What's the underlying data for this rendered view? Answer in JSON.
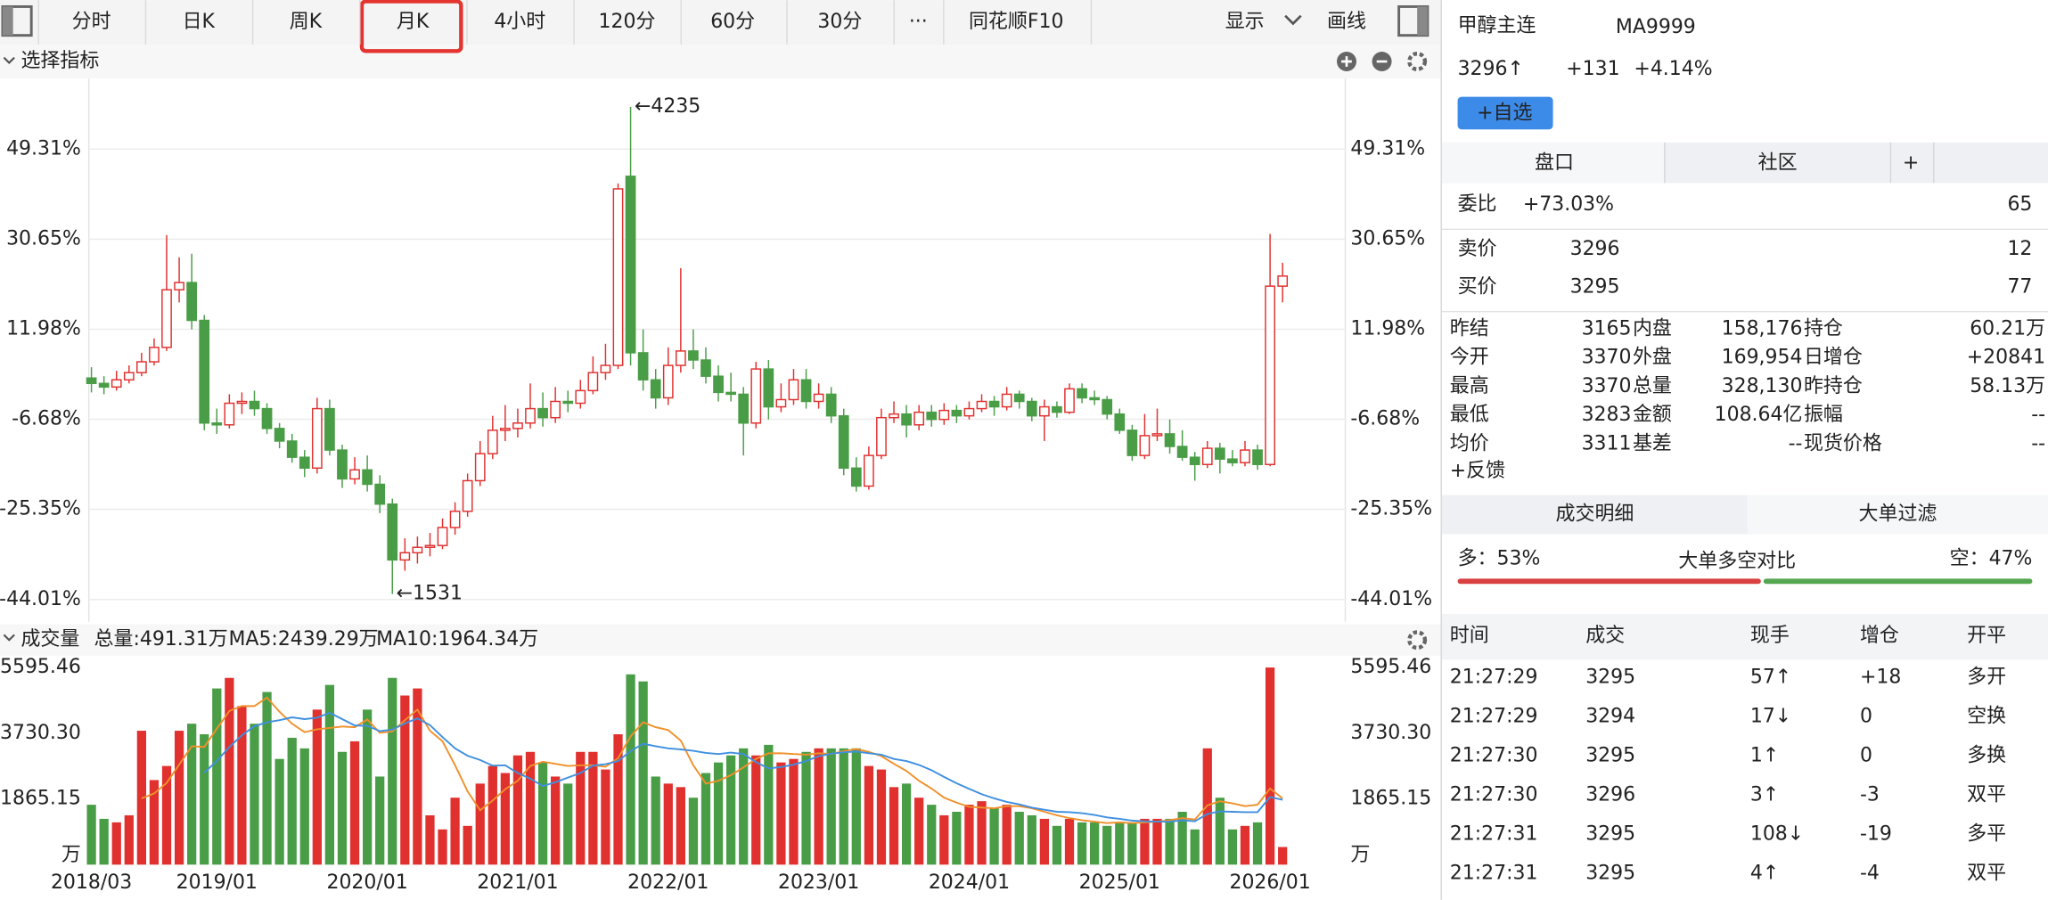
{
  "toolbar": {
    "tabs": [
      "分时",
      "日K",
      "周K",
      "月K",
      "4小时",
      "120分",
      "60分",
      "30分",
      "···",
      "同花顺F10"
    ],
    "active": 3,
    "display": "显示",
    "draw": "画线"
  },
  "indicator_bar": {
    "label": "选择指标"
  },
  "chart_data": [
    {
      "type": "candlestick",
      "grid": true,
      "up_color": "#e0312f",
      "down_color": "#4a9d47",
      "ylim": [
        1377,
        4393
      ],
      "yticks": [
        {
          "value": 4001,
          "label": "49.31%"
        },
        {
          "value": 3501,
          "label": "30.65%"
        },
        {
          "value": 3001,
          "label": "11.98%"
        },
        {
          "value": 2501,
          "label": "-6.68%"
        },
        {
          "value": 2001,
          "label": "-25.35%"
        },
        {
          "value": 1500,
          "label": "-44.01%"
        }
      ],
      "xticks": [
        {
          "value": 0,
          "label": "2018/03"
        },
        {
          "value": 10,
          "label": "2019/01"
        },
        {
          "value": 22,
          "label": "2020/01"
        },
        {
          "value": 34,
          "label": "2021/01"
        },
        {
          "value": 46,
          "label": "2022/01"
        },
        {
          "value": 58,
          "label": "2023/01"
        },
        {
          "value": 70,
          "label": "2024/01"
        },
        {
          "value": 82,
          "label": "2025/01"
        },
        {
          "value": 94,
          "label": "2026/01"
        }
      ],
      "annotations": [
        {
          "label": "←4235",
          "value": 4235
        },
        {
          "label": "←1531",
          "value": 1531
        }
      ],
      "candles": [
        [
          2730,
          2790,
          2650,
          2700
        ],
        [
          2700,
          2740,
          2640,
          2680
        ],
        [
          2680,
          2770,
          2660,
          2720
        ],
        [
          2720,
          2800,
          2700,
          2760
        ],
        [
          2760,
          2870,
          2740,
          2820
        ],
        [
          2820,
          2950,
          2800,
          2900
        ],
        [
          2900,
          3523,
          2880,
          3220
        ],
        [
          3220,
          3400,
          3150,
          3260
        ],
        [
          3260,
          3420,
          3000,
          3050
        ],
        [
          3050,
          3080,
          2440,
          2480
        ],
        [
          2480,
          2560,
          2420,
          2470
        ],
        [
          2470,
          2640,
          2450,
          2590
        ],
        [
          2590,
          2650,
          2530,
          2600
        ],
        [
          2600,
          2660,
          2520,
          2560
        ],
        [
          2560,
          2590,
          2420,
          2450
        ],
        [
          2450,
          2480,
          2340,
          2380
        ],
        [
          2380,
          2420,
          2260,
          2290
        ],
        [
          2290,
          2330,
          2180,
          2230
        ],
        [
          2230,
          2620,
          2200,
          2560
        ],
        [
          2560,
          2610,
          2300,
          2330
        ],
        [
          2330,
          2360,
          2120,
          2170
        ],
        [
          2170,
          2290,
          2140,
          2220
        ],
        [
          2220,
          2300,
          2100,
          2140
        ],
        [
          2140,
          2190,
          1980,
          2030
        ],
        [
          2030,
          2060,
          1531,
          1720
        ],
        [
          1720,
          1840,
          1660,
          1760
        ],
        [
          1760,
          1850,
          1700,
          1790
        ],
        [
          1790,
          1870,
          1740,
          1800
        ],
        [
          1800,
          1950,
          1780,
          1900
        ],
        [
          1900,
          2040,
          1860,
          1990
        ],
        [
          1990,
          2200,
          1960,
          2160
        ],
        [
          2160,
          2380,
          2130,
          2310
        ],
        [
          2310,
          2520,
          2280,
          2440
        ],
        [
          2440,
          2580,
          2380,
          2450
        ],
        [
          2450,
          2560,
          2400,
          2480
        ],
        [
          2480,
          2700,
          2450,
          2560
        ],
        [
          2560,
          2650,
          2460,
          2510
        ],
        [
          2510,
          2680,
          2480,
          2600
        ],
        [
          2600,
          2660,
          2540,
          2590
        ],
        [
          2590,
          2720,
          2560,
          2660
        ],
        [
          2660,
          2850,
          2640,
          2760
        ],
        [
          2760,
          2920,
          2720,
          2800
        ],
        [
          2800,
          3810,
          2780,
          3780
        ],
        [
          3850,
          4235,
          2800,
          2870
        ],
        [
          2870,
          3000,
          2660,
          2720
        ],
        [
          2720,
          2780,
          2560,
          2620
        ],
        [
          2620,
          2900,
          2580,
          2800
        ],
        [
          2800,
          3340,
          2760,
          2880
        ],
        [
          2880,
          3000,
          2780,
          2830
        ],
        [
          2830,
          2900,
          2700,
          2740
        ],
        [
          2740,
          2800,
          2600,
          2650
        ],
        [
          2650,
          2760,
          2600,
          2640
        ],
        [
          2640,
          2680,
          2300,
          2480
        ],
        [
          2480,
          2820,
          2450,
          2780
        ],
        [
          2780,
          2830,
          2500,
          2570
        ],
        [
          2570,
          2700,
          2540,
          2610
        ],
        [
          2610,
          2780,
          2580,
          2720
        ],
        [
          2720,
          2780,
          2560,
          2600
        ],
        [
          2600,
          2700,
          2560,
          2640
        ],
        [
          2640,
          2680,
          2480,
          2520
        ],
        [
          2520,
          2560,
          2190,
          2230
        ],
        [
          2230,
          2290,
          2100,
          2130
        ],
        [
          2130,
          2350,
          2110,
          2300
        ],
        [
          2300,
          2560,
          2280,
          2510
        ],
        [
          2510,
          2600,
          2480,
          2530
        ],
        [
          2530,
          2580,
          2400,
          2470
        ],
        [
          2470,
          2580,
          2440,
          2540
        ],
        [
          2540,
          2580,
          2460,
          2500
        ],
        [
          2500,
          2590,
          2470,
          2550
        ],
        [
          2550,
          2580,
          2480,
          2520
        ],
        [
          2520,
          2600,
          2500,
          2560
        ],
        [
          2560,
          2640,
          2540,
          2600
        ],
        [
          2600,
          2630,
          2520,
          2570
        ],
        [
          2570,
          2680,
          2550,
          2640
        ],
        [
          2640,
          2660,
          2560,
          2600
        ],
        [
          2600,
          2620,
          2490,
          2520
        ],
        [
          2520,
          2610,
          2380,
          2570
        ],
        [
          2570,
          2600,
          2510,
          2540
        ],
        [
          2540,
          2700,
          2530,
          2670
        ],
        [
          2670,
          2700,
          2590,
          2620
        ],
        [
          2620,
          2660,
          2580,
          2610
        ],
        [
          2610,
          2630,
          2500,
          2530
        ],
        [
          2530,
          2560,
          2420,
          2440
        ],
        [
          2440,
          2470,
          2270,
          2300
        ],
        [
          2300,
          2530,
          2280,
          2410
        ],
        [
          2410,
          2560,
          2380,
          2420
        ],
        [
          2420,
          2500,
          2310,
          2350
        ],
        [
          2350,
          2440,
          2270,
          2290
        ],
        [
          2290,
          2320,
          2160,
          2250
        ],
        [
          2250,
          2380,
          2230,
          2340
        ],
        [
          2340,
          2370,
          2200,
          2280
        ],
        [
          2280,
          2330,
          2240,
          2260
        ],
        [
          2260,
          2380,
          2240,
          2330
        ],
        [
          2330,
          2360,
          2220,
          2250
        ],
        [
          2250,
          3530,
          2240,
          3240
        ],
        [
          3240,
          3370,
          3150,
          3296
        ]
      ]
    },
    {
      "type": "bar",
      "title": "成交量",
      "legend": [
        "总量:491.31万",
        "MA5:2439.29万",
        "MA10:1964.34万"
      ],
      "legend_colors": [
        "#e0312f",
        "#f0902a",
        "#3f8fe0"
      ],
      "ylim": [
        0,
        5930
      ],
      "yticks": [
        5595.46,
        {
          "value": 3730.3,
          "label": "3730.30"
        },
        1865.15,
        {
          "value": 0,
          "label": "万"
        }
      ],
      "values": [
        1700,
        1300,
        1200,
        1400,
        3800,
        2400,
        2800,
        3800,
        4000,
        3700,
        5000,
        5300,
        4500,
        4000,
        4900,
        3000,
        3600,
        3300,
        4400,
        5100,
        3200,
        3500,
        4400,
        2500,
        5300,
        4800,
        5000,
        1400,
        1000,
        1900,
        1100,
        2300,
        2800,
        2600,
        3100,
        3200,
        2900,
        2500,
        2300,
        3200,
        3200,
        2700,
        3700,
        5400,
        5200,
        2500,
        2300,
        2200,
        1900,
        2600,
        2900,
        3100,
        3300,
        3100,
        3400,
        2900,
        3000,
        3200,
        3300,
        3300,
        3300,
        3300,
        2800,
        2700,
        2200,
        2300,
        1900,
        1700,
        1400,
        1500,
        1700,
        1800,
        1600,
        1700,
        1500,
        1400,
        1300,
        1100,
        1300,
        1200,
        1200,
        1100,
        1200,
        1200,
        1300,
        1300,
        1300,
        1500,
        1000,
        3300,
        1900,
        1000,
        1100,
        1200,
        5595,
        500
      ]
    }
  ],
  "quote": {
    "name": "甲醇主连",
    "code": "MA9999",
    "price": "3296↑",
    "change": "+131",
    "pct": "+4.14%",
    "watch_btn": "+自选",
    "tabs": [
      "盘口",
      "社区",
      "+"
    ],
    "weibi": {
      "label": "委比",
      "value": "+73.03%",
      "count": "65"
    },
    "sell": {
      "label": "卖价",
      "price": "3296",
      "qty": "12"
    },
    "buy": {
      "label": "买价",
      "price": "3295",
      "qty": "77"
    },
    "stats": [
      [
        [
          "昨结",
          "3165"
        ],
        [
          "内盘",
          "158,176"
        ],
        [
          "持仓",
          "60.21万"
        ]
      ],
      [
        [
          "今开",
          "3370"
        ],
        [
          "外盘",
          "169,954"
        ],
        [
          "日增仓",
          "+20841"
        ]
      ],
      [
        [
          "最高",
          "3370"
        ],
        [
          "总量",
          "328,130"
        ],
        [
          "昨持仓",
          "58.13万"
        ]
      ],
      [
        [
          "最低",
          "3283"
        ],
        [
          "金额",
          "108.64亿"
        ],
        [
          "振幅",
          "--"
        ]
      ],
      [
        [
          "均价",
          "3311"
        ],
        [
          "基差",
          "--"
        ],
        [
          "现货价格",
          "--"
        ]
      ]
    ],
    "stats_colors": [
      [
        "k",
        "g",
        "k"
      ],
      [
        "r",
        "r",
        "r"
      ],
      [
        "r",
        "k",
        "k"
      ],
      [
        "r",
        "k",
        "k"
      ],
      [
        "r",
        "k",
        "k"
      ]
    ],
    "feedback": "+反馈",
    "trade_tabs": [
      "成交明细",
      "大单过滤"
    ],
    "ratio": {
      "long": "多：53%",
      "title": "大单多空对比",
      "short": "空：47%",
      "long_pct": 53,
      "short_pct": 47
    },
    "table": {
      "headers": [
        "时间",
        "成交",
        "现手",
        "增仓",
        "开平"
      ],
      "rows": [
        [
          "21:27:29",
          "3295",
          "57↑",
          "+18",
          "多开"
        ],
        [
          "21:27:29",
          "3294",
          "17↓",
          "0",
          "空换"
        ],
        [
          "21:27:30",
          "3295",
          "1↑",
          "0",
          "多换"
        ],
        [
          "21:27:30",
          "3296",
          "3↑",
          "-3",
          "双平"
        ],
        [
          "21:27:31",
          "3295",
          "108↓",
          "-19",
          "多平"
        ],
        [
          "21:27:31",
          "3295",
          "4↑",
          "-4",
          "双平"
        ]
      ],
      "colors": [
        [
          "k",
          "r",
          "r",
          "r",
          "r"
        ],
        [
          "k",
          "r",
          "g",
          "k",
          "g"
        ],
        [
          "k",
          "r",
          "r",
          "k",
          "r"
        ],
        [
          "k",
          "r",
          "r",
          "g",
          "r"
        ],
        [
          "k",
          "r",
          "g",
          "g",
          "g"
        ],
        [
          "k",
          "r",
          "r",
          "g",
          "r"
        ]
      ]
    }
  }
}
